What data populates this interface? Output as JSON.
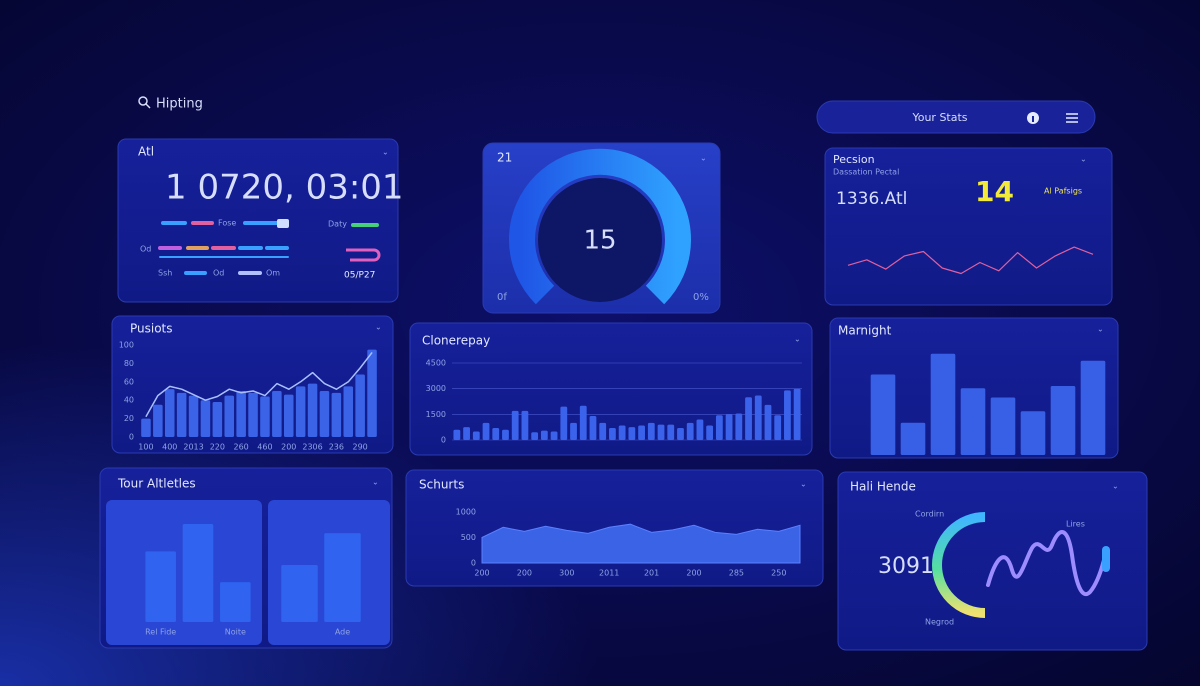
{
  "search": "Hipting",
  "stats_bar": "Your Stats",
  "panels": {
    "clock": {
      "title": "Atl",
      "time": "1 0720, 03:01",
      "labels": [
        "Fose",
        "Daty",
        "Od",
        "Ssh",
        "Od",
        "Om"
      ],
      "code": "05/P27"
    },
    "gauge": {
      "title": "21",
      "value": "15",
      "left": "0f",
      "right": "0%"
    },
    "precision": {
      "title": "Pecsion",
      "subtitle": "Dassation Pectal",
      "metric": "1336.Atl",
      "highlight": "14",
      "note": "Al Pafsigs"
    },
    "tour": {
      "title": "Tour Altletles"
    },
    "halo": {
      "title": "Hali Hende",
      "value": "3091",
      "labels": [
        "Cordirn",
        "Lires",
        "Negrod"
      ]
    }
  },
  "chart_data": [
    {
      "type": "line",
      "color": "#e0609e",
      "ylim": [
        0,
        100
      ],
      "values": [
        45,
        55,
        38,
        62,
        70,
        40,
        30,
        50,
        35,
        68,
        40,
        62,
        78,
        65
      ]
    },
    {
      "type": "combo",
      "title": "Pusiots",
      "ylim": [
        0,
        100
      ],
      "yticks": [
        0,
        20,
        40,
        60,
        80,
        100
      ],
      "categories": [
        "100",
        null,
        "400",
        null,
        "2013",
        null,
        "220",
        null,
        "260",
        null,
        "460",
        null,
        "200",
        null,
        "2306",
        null,
        "236",
        null,
        "290",
        null
      ],
      "series": [
        {
          "type": "bar",
          "color": "#3a63e8",
          "values": [
            20,
            35,
            52,
            48,
            45,
            40,
            38,
            45,
            50,
            48,
            44,
            50,
            46,
            55,
            58,
            50,
            48,
            55,
            68,
            95
          ]
        },
        {
          "type": "line",
          "color": "#a9c0ff",
          "values": [
            22,
            45,
            55,
            52,
            46,
            40,
            44,
            52,
            48,
            50,
            45,
            58,
            52,
            60,
            70,
            58,
            52,
            60,
            75,
            92
          ]
        }
      ]
    },
    {
      "type": "bar",
      "title": "Clonerepay",
      "color": "#3a62ea",
      "ylim": [
        0,
        4500
      ],
      "yticks": [
        0,
        1500,
        3000,
        4500
      ],
      "grid": true,
      "values": [
        600,
        750,
        500,
        1000,
        700,
        600,
        1700,
        1700,
        450,
        550,
        500,
        1950,
        1000,
        2000,
        1400,
        1000,
        700,
        850,
        750,
        850,
        1000,
        900,
        900,
        700,
        1000,
        1200,
        850,
        1450,
        1500,
        1550,
        2500,
        2600,
        2050,
        1450,
        2900,
        3000
      ]
    },
    {
      "type": "bar",
      "title": "Marnight",
      "color": "#3860e6",
      "ylim": [
        0,
        100
      ],
      "values": [
        70,
        28,
        88,
        58,
        50,
        38,
        60,
        82
      ]
    },
    {
      "type": "bar",
      "color": "#2f63f0",
      "ylim": [
        0,
        100
      ],
      "categories": [
        "Rel Fide",
        null,
        "Noite"
      ],
      "values": [
        62,
        86,
        35
      ]
    },
    {
      "type": "bar",
      "color": "#2f63f0",
      "ylim": [
        0,
        100
      ],
      "categories": [
        null,
        "Ade"
      ],
      "values": [
        50,
        78
      ]
    },
    {
      "type": "area",
      "title": "Schurts",
      "color": "#3b63e6",
      "ylim": [
        0,
        1000
      ],
      "yticks": [
        0,
        500,
        1000
      ],
      "categories": [
        "200",
        null,
        "200",
        null,
        "300",
        null,
        "2011",
        null,
        "201",
        null,
        "200",
        null,
        "285",
        null,
        "250",
        null
      ],
      "values": [
        500,
        700,
        620,
        720,
        640,
        580,
        700,
        760,
        600,
        650,
        740,
        600,
        560,
        660,
        620,
        740
      ]
    }
  ]
}
